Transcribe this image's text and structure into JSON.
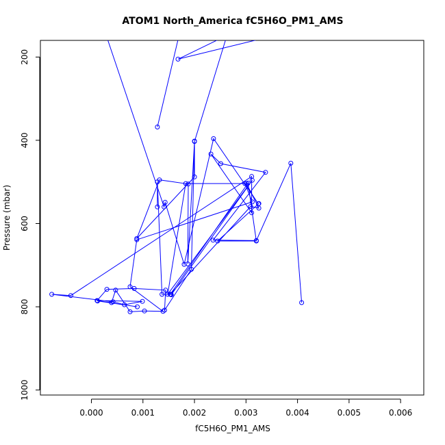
{
  "chart_data": {
    "type": "line",
    "title": "ATOM1 North_America fC5H6O_PM1_AMS",
    "xlabel": "fC5H6O_PM1_AMS",
    "ylabel": "Pressure (mbar)",
    "xlim": [
      -0.00099,
      0.00645
    ],
    "ylim": [
      1012,
      160
    ],
    "y_inverted": true,
    "x_ticks": [
      0.0,
      0.001,
      0.002,
      0.003,
      0.004,
      0.005,
      0.006
    ],
    "x_tick_labels": [
      "0.000",
      "0.001",
      "0.002",
      "0.003",
      "0.004",
      "0.005",
      "0.006"
    ],
    "y_ticks": [
      200,
      400,
      600,
      800,
      1000
    ],
    "y_tick_labels": [
      "200",
      "400",
      "600",
      "800",
      "1000"
    ],
    "grid": false,
    "legend": "none",
    "series": [
      {
        "color": "#0000ff",
        "marker": "open-circle",
        "x": [
          0.00403,
          0.00168,
          0.00263,
          0.002,
          0.002,
          0.00088,
          0.00132,
          0.00188,
          0.00187,
          0.002,
          0.00194,
          0.00142,
          0.00144,
          0.00083,
          0.0003,
          0.00011,
          0.00099,
          0.00064,
          0.00042,
          -0.00077,
          -0.0004,
          0.00311,
          0.00311,
          0.00232,
          0.00251,
          0.00338,
          0.00236,
          0.0032,
          0.00387,
          0.00408
        ],
        "y": [
          134,
          205,
          148,
          403,
          488,
          636,
          495,
          505,
          697,
          402,
          710,
          808,
          760,
          756,
          758,
          785,
          787,
          795,
          788,
          770,
          773,
          487,
          574,
          433,
          456,
          477,
          640,
          641,
          455,
          790
        ]
      },
      {
        "color": "#0000ff",
        "marker": "open-circle",
        "x": [
          0.00128,
          0.00171,
          0.00031,
          0.00141,
          0.00143,
          0.0018,
          0.00237,
          0.00324,
          0.00298,
          0.00312,
          0.00088,
          0.00075,
          0.00139,
          0.00103,
          0.00075,
          0.00047,
          0.00039,
          0.00012,
          0.00089
        ],
        "y": [
          368,
          143,
          156,
          560,
          549,
          698,
          396,
          553,
          504,
          548,
          639,
          752,
          811,
          810,
          812,
          760,
          790,
          786,
          800
        ]
      },
      {
        "color": "#0000ff",
        "marker": "open-circle",
        "x": [
          0.00128,
          0.00128,
          0.00137,
          0.00154,
          0.00155,
          0.00312,
          0.00148,
          0.00183,
          0.00301,
          0.00325,
          0.00309,
          0.00153,
          0.00304,
          0.0032,
          0.00245,
          0.00325
        ],
        "y": [
          560,
          500,
          770,
          770,
          771,
          496,
          770,
          504,
          504,
          563,
          559,
          770,
          503,
          642,
          642,
          552
        ]
      }
    ]
  }
}
